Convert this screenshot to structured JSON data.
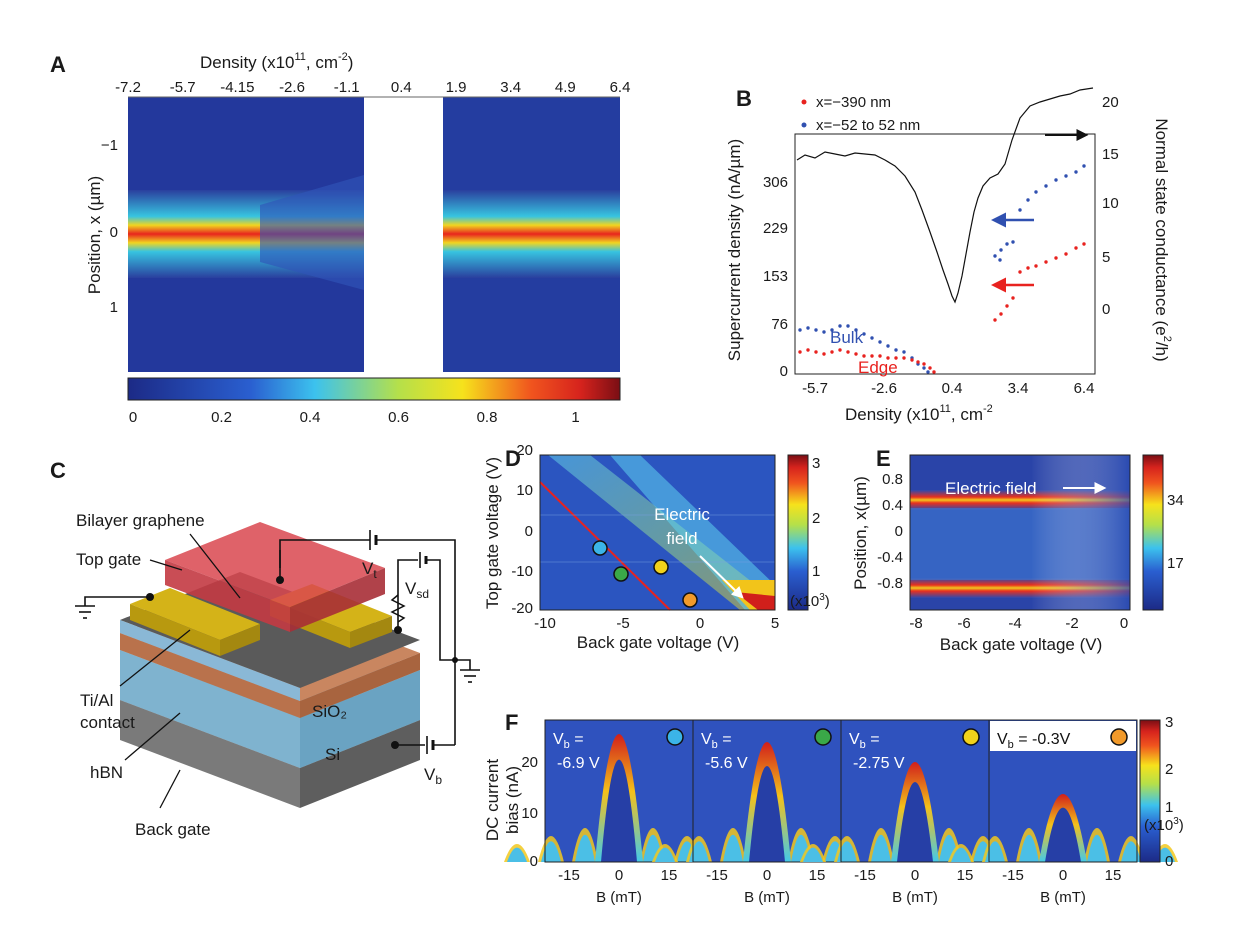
{
  "panels": {
    "A": {
      "label": "A",
      "top_axis_label": "Density (x10",
      "top_axis_exp": "11",
      "top_axis_unit": ", cm",
      "top_axis_unit_exp": "-2",
      "top_axis_close": ")",
      "top_ticks": [
        "-7.2",
        "-5.7",
        "-4.15",
        "-2.6",
        "-1.1",
        "0.4",
        "1.9",
        "3.4",
        "4.9",
        "6.4"
      ],
      "y_label": "Position, x (µm)",
      "y_ticks": [
        "−1",
        "0",
        "1"
      ],
      "colorbar_ticks": [
        "0",
        "0.2",
        "0.4",
        "0.6",
        "0.8",
        "1"
      ]
    },
    "B": {
      "label": "B",
      "legend": [
        "x=−390 nm",
        "x=−52 to 52 nm"
      ],
      "legend_colors": [
        "#e8221f",
        "#3050b0"
      ],
      "y_left_label": "Supercurrent density (nA/µm)",
      "y_left_ticks": [
        "0",
        "76",
        "153",
        "229",
        "306"
      ],
      "y_right_label": "Normal state conductance (e",
      "y_right_exp": "2",
      "y_right_close": "/h)",
      "y_right_ticks": [
        "0",
        "5",
        "10",
        "15",
        "20"
      ],
      "x_label": "Density (x10",
      "x_exp": "11",
      "x_unit": ", cm",
      "x_unit_exp": "-2",
      "x_ticks": [
        "-5.7",
        "-2.6",
        "0.4",
        "3.4",
        "6.4"
      ],
      "bulk_label": "Bulk",
      "edge_label": "Edge"
    },
    "C": {
      "label": "C",
      "labels": {
        "bilayer": "Bilayer graphene",
        "top_gate": "Top gate",
        "vt": "V",
        "vt_sub": "t",
        "vsd": "V",
        "vsd_sub": "sd",
        "sio2": "SiO₂",
        "si": "Si",
        "vb": "V",
        "vb_sub": "b",
        "contact1": "Ti/Al",
        "contact2": "contact",
        "hbn": "hBN",
        "back_gate": "Back gate"
      }
    },
    "D": {
      "label": "D",
      "y_label": "Top gate voltage (V)",
      "y_ticks": [
        "20",
        "10",
        "0",
        "-10",
        "-20"
      ],
      "x_label": "Back gate voltage (V)",
      "x_ticks": [
        "-10",
        "-5",
        "0",
        "5"
      ],
      "annotation1": "Electric",
      "annotation2": "field",
      "colorbar_ticks": [
        "1",
        "2",
        "3"
      ],
      "colorbar_unit": "(x10",
      "colorbar_exp": "3",
      "colorbar_close": ")",
      "dot_colors": [
        "#3bb4e8",
        "#3aa848",
        "#f2d21b",
        "#f29a2a"
      ]
    },
    "E": {
      "label": "E",
      "y_label": "Position, x(µm)",
      "y_ticks": [
        "0.8",
        "0.4",
        "0",
        "-0.4",
        "-0.8"
      ],
      "x_label": "Back gate voltage (V)",
      "x_ticks": [
        "-8",
        "-6",
        "-4",
        "-2",
        "0"
      ],
      "annotation": "Electric field",
      "colorbar_ticks": [
        "34",
        "17"
      ]
    },
    "F": {
      "label": "F",
      "y_label1": "DC current",
      "y_label2": "bias (nA)",
      "y_ticks": [
        "20",
        "10",
        "0"
      ],
      "x_ticks": [
        "-15",
        "0",
        "15"
      ],
      "x_label": "B (mT)",
      "subpanels": [
        {
          "vb_label": "V",
          "vb_sub": "b",
          "vb_eq": " =",
          "value": "-6.9 V",
          "dot": "#3bb4e8"
        },
        {
          "vb_label": "V",
          "vb_sub": "b",
          "vb_eq": " =",
          "value": "-5.6 V",
          "dot": "#3aa848"
        },
        {
          "vb_label": "V",
          "vb_sub": "b",
          "vb_eq": " =",
          "value": "-2.75 V",
          "dot": "#f2d21b"
        },
        {
          "vb_label": "V",
          "vb_sub": "b",
          "vb_eq": " = -0.3V",
          "value": "",
          "dot": "#f29a2a"
        }
      ],
      "colorbar_ticks": [
        "3",
        "2",
        "1",
        "0"
      ],
      "colorbar_unit": "(x10",
      "colorbar_exp": "3",
      "colorbar_close": ")"
    }
  },
  "colors": {
    "map_low": "#1f2a8c",
    "map_mid": "#3fbf8f",
    "map_high": "#e8221f",
    "edge_red": "#e8221f",
    "bulk_blue": "#3050b0",
    "gold": "#c8a411",
    "topgate_red": "#d9474f"
  }
}
